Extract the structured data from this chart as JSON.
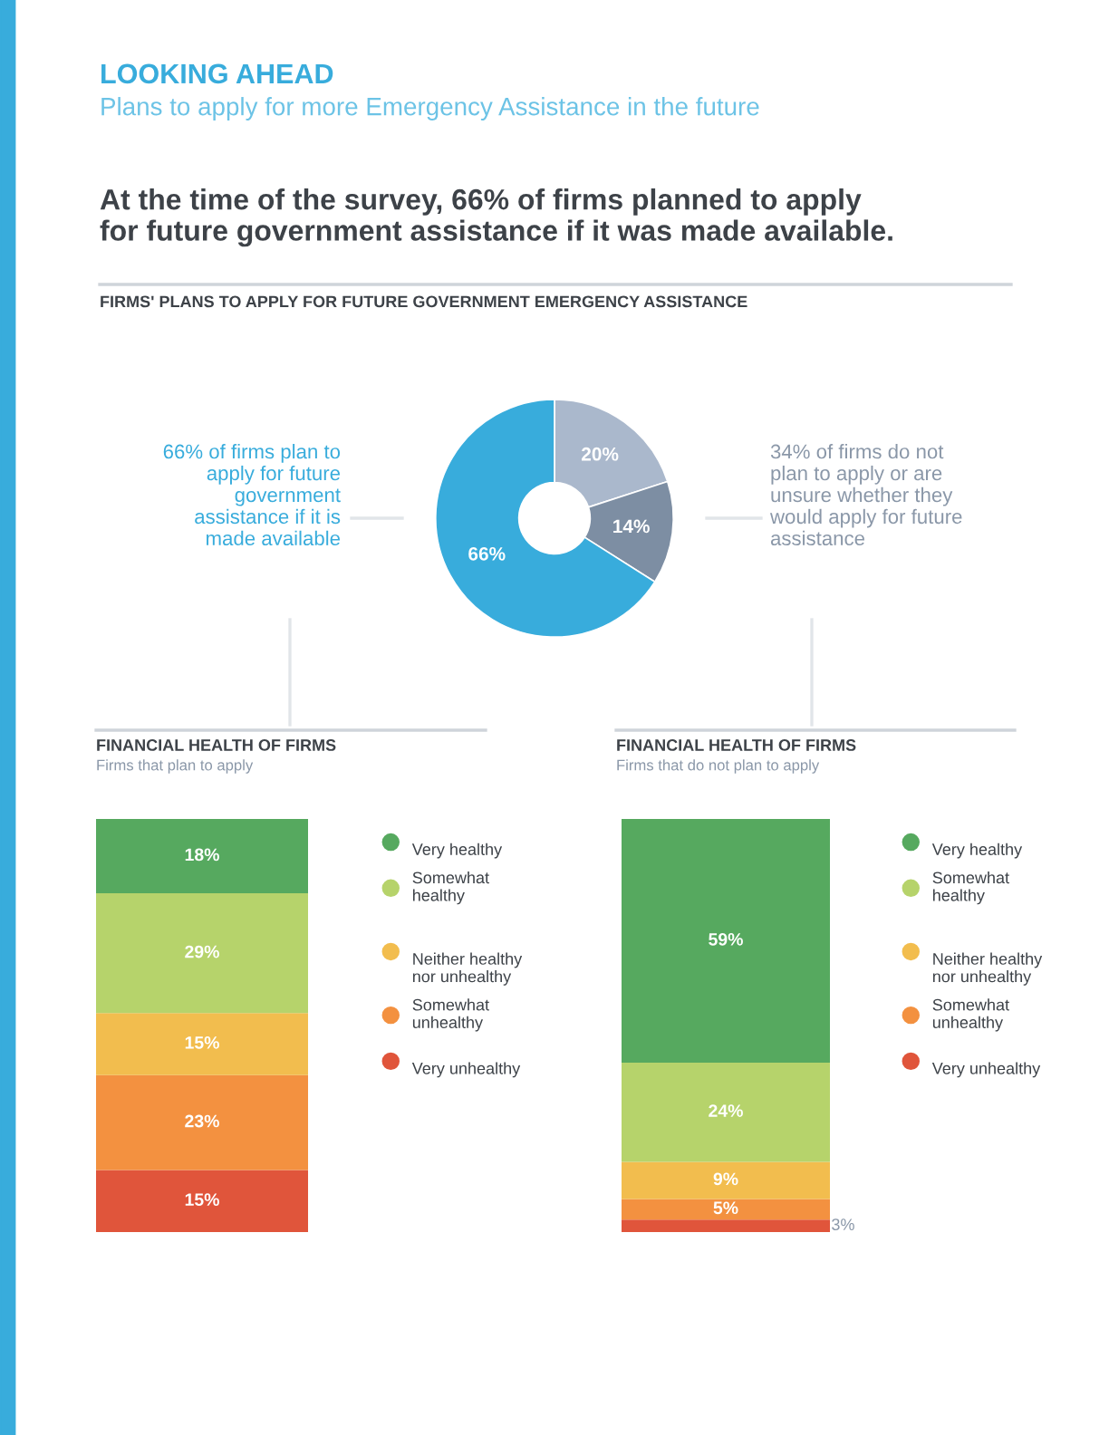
{
  "chart_data": [
    {
      "type": "donut",
      "title": "LOOKING AHEAD",
      "subtitle": "Plans to apply for more Emergency Assistance in the future",
      "annotations": [
        "At the time of the survey, 66% of firms planned to apply for future government assistance if it was made available.",
        "FIRMS' PLANS TO APPLY FOR FUTURE GOVERNMENT EMERGENCY ASSISTANCE",
        "66% of firms plan to apply for future government assistance if it is made available",
        "34% of firms do not plan to apply or are unsure whether they would apply for future assistance"
      ],
      "categories": [
        null,
        null,
        null
      ],
      "values": [
        20,
        14,
        66
      ],
      "value_labels": [
        "20%",
        "14%",
        "66%"
      ],
      "colors": [
        "#aab8cc",
        "#7d8ea3",
        "#38acdc"
      ]
    },
    {
      "type": "bar",
      "title": "FINANCIAL HEALTH OF FIRMS",
      "subtitle": "Firms that plan to apply",
      "categories": [
        null
      ],
      "stacked": true,
      "legend": "right",
      "series": [
        {
          "name": "Very unhealthy",
          "color": "#e0553b",
          "values": [
            15
          ],
          "value_labels": [
            "15%"
          ]
        },
        {
          "name": "Somewhat unhealthy",
          "color": "#f39140",
          "values": [
            23
          ],
          "value_labels": [
            "23%"
          ]
        },
        {
          "name": "Neither healthy nor unhealthy",
          "color": "#f2bd4e",
          "values": [
            15
          ],
          "value_labels": [
            "15%"
          ]
        },
        {
          "name": "Somewhat healthy",
          "color": "#b6d36b",
          "values": [
            29
          ],
          "value_labels": [
            "29%"
          ]
        },
        {
          "name": "Very healthy",
          "color": "#56a95f",
          "values": [
            18
          ],
          "value_labels": [
            "18%"
          ]
        }
      ]
    },
    {
      "type": "bar",
      "title": "FINANCIAL HEALTH OF FIRMS",
      "subtitle": "Firms that do not plan to apply",
      "categories": [
        null
      ],
      "stacked": true,
      "legend": "right",
      "series": [
        {
          "name": "Very unhealthy",
          "color": "#e0553b",
          "values": [
            3
          ],
          "value_labels": [
            "3%"
          ]
        },
        {
          "name": "Somewhat unhealthy",
          "color": "#f39140",
          "values": [
            5
          ],
          "value_labels": [
            "5%"
          ]
        },
        {
          "name": "Neither healthy nor unhealthy",
          "color": "#f2bd4e",
          "values": [
            9
          ],
          "value_labels": [
            "9%"
          ]
        },
        {
          "name": "Somewhat healthy",
          "color": "#b6d36b",
          "values": [
            24
          ],
          "value_labels": [
            "24%"
          ]
        },
        {
          "name": "Very healthy",
          "color": "#56a95f",
          "values": [
            59
          ],
          "value_labels": [
            "59%"
          ]
        }
      ]
    }
  ]
}
